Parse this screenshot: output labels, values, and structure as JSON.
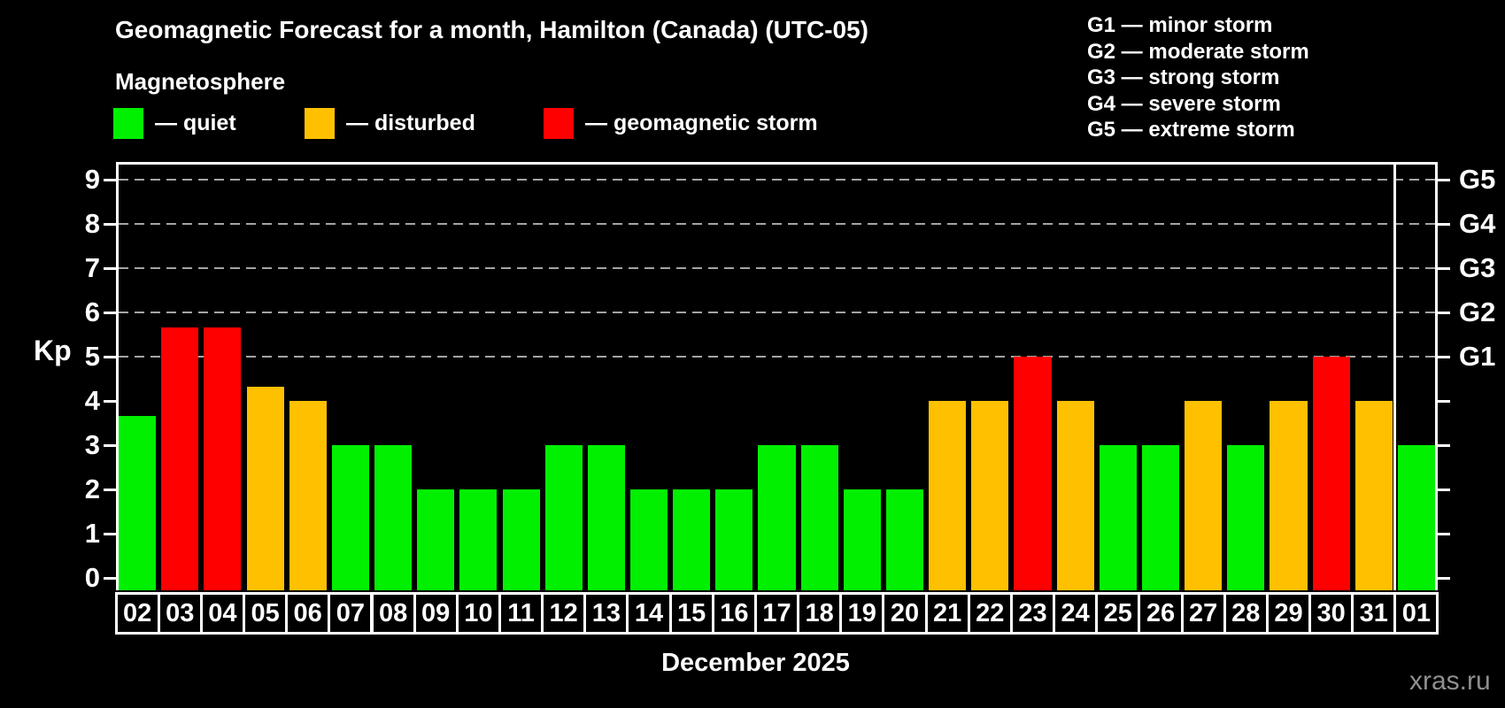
{
  "header": {
    "title": "Geomagnetic Forecast for a month, Hamilton (Canada) (UTC-05)",
    "subtitle": "Magnetosphere"
  },
  "legend": {
    "quiet": "— quiet",
    "disturbed": "— disturbed",
    "storm": "— geomagnetic storm"
  },
  "g_legend": {
    "lines": [
      "G1 — minor storm",
      "G2 — moderate storm",
      "G3 — strong storm",
      "G4 — severe storm",
      "G5 — extreme storm"
    ]
  },
  "chart_data": {
    "type": "bar",
    "title": "Geomagnetic Forecast for a month, Hamilton (Canada) (UTC-05)",
    "xlabel": "December 2025",
    "ylabel": "Kp",
    "ylim": [
      -0.3,
      9.4
    ],
    "y_ticks": [
      0,
      1,
      2,
      3,
      4,
      5,
      6,
      7,
      8,
      9
    ],
    "grid_levels": [
      5,
      6,
      7,
      8,
      9
    ],
    "right_axis_labels": {
      "5": "G1",
      "6": "G2",
      "7": "G3",
      "8": "G4",
      "9": "G5"
    },
    "legend_position": "top",
    "grid": "dashed, levels 5-9 only",
    "categories": [
      "02",
      "03",
      "04",
      "05",
      "06",
      "07",
      "08",
      "09",
      "10",
      "11",
      "12",
      "13",
      "14",
      "15",
      "16",
      "17",
      "18",
      "19",
      "20",
      "21",
      "22",
      "23",
      "24",
      "25",
      "26",
      "27",
      "28",
      "29",
      "30",
      "31",
      "01"
    ],
    "values": [
      3.67,
      5.67,
      5.67,
      4.33,
      4,
      3,
      3,
      2,
      2,
      2,
      3,
      3,
      2,
      2,
      2,
      3,
      3,
      2,
      2,
      4,
      4,
      5,
      4,
      3,
      3,
      4,
      3,
      4,
      5,
      4,
      3
    ],
    "statuses": [
      "quiet",
      "storm",
      "storm",
      "disturbed",
      "disturbed",
      "quiet",
      "quiet",
      "quiet",
      "quiet",
      "quiet",
      "quiet",
      "quiet",
      "quiet",
      "quiet",
      "quiet",
      "quiet",
      "quiet",
      "quiet",
      "quiet",
      "disturbed",
      "disturbed",
      "storm",
      "disturbed",
      "quiet",
      "quiet",
      "disturbed",
      "quiet",
      "disturbed",
      "storm",
      "disturbed",
      "quiet"
    ],
    "month_separator_after_index": 29,
    "colors": {
      "quiet": "#00f000",
      "disturbed": "#ffc000",
      "storm": "#ff0000",
      "axis": "#ffffff",
      "grid": "#a4a4a4"
    }
  },
  "footer": {
    "watermark": "xras.ru"
  }
}
